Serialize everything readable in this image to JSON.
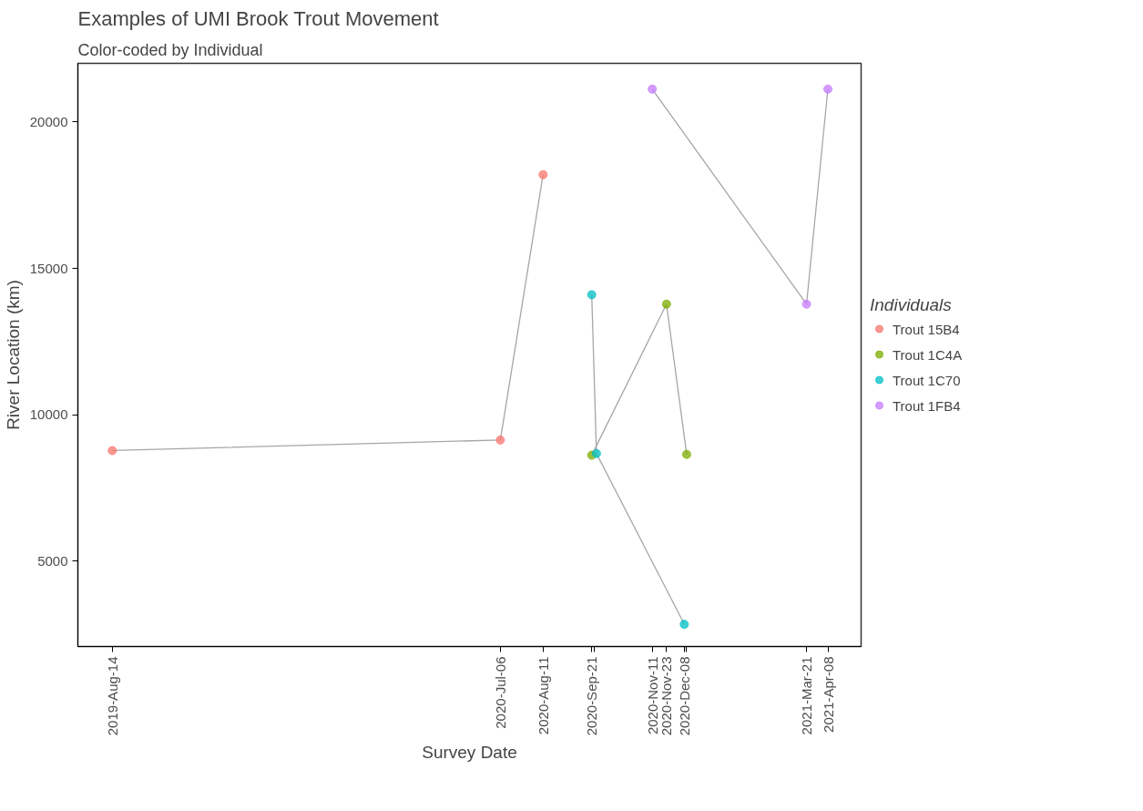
{
  "chart_data": {
    "type": "line",
    "title": "Examples of UMI Brook Trout Movement",
    "subtitle": "Color-coded by Individual",
    "xlabel": "Survey Date",
    "ylabel": "River Location (km)",
    "legend_title": "Individuals",
    "legend": "right",
    "marker": "circle",
    "grid": false,
    "xlim": [
      "2019-07-16",
      "2021-05-06"
    ],
    "ylim": [
      2090,
      22000
    ],
    "xticks": [
      {
        "value": "2019-08-14",
        "label": "2019-Aug-14"
      },
      {
        "value": "2020-07-06",
        "label": "2020-Jul-06"
      },
      {
        "value": "2020-08-11",
        "label": "2020-Aug-11"
      },
      {
        "value": "2020-09-21",
        "label": "2020-Sep-21"
      },
      {
        "value": "2020-09-23",
        "label": null
      },
      {
        "value": "2020-11-11",
        "label": "2020-Nov-11"
      },
      {
        "value": "2020-11-23",
        "label": "2020-Nov-23"
      },
      {
        "value": "2020-12-08",
        "label": "2020-Dec-08"
      },
      {
        "value": "2020-12-10",
        "label": null
      },
      {
        "value": "2021-03-21",
        "label": "2021-Mar-21"
      },
      {
        "value": "2021-04-08",
        "label": "2021-Apr-08"
      }
    ],
    "yticks": [
      5000,
      10000,
      15000,
      20000
    ],
    "series": [
      {
        "name": "Trout 15B4",
        "color": "#f8766d",
        "x": [
          "2019-08-14",
          "2020-07-06",
          "2020-08-11"
        ],
        "values": [
          8780,
          9140,
          18200
        ]
      },
      {
        "name": "Trout 1C4A",
        "color": "#7cae00",
        "x": [
          "2020-09-21",
          "2020-11-23",
          "2020-12-10"
        ],
        "values": [
          8620,
          13780,
          8650
        ]
      },
      {
        "name": "Trout 1C70",
        "color": "#00bfc4",
        "x": [
          "2020-09-21",
          "2020-09-25",
          "2020-12-08"
        ],
        "values": [
          14100,
          8680,
          2850
        ]
      },
      {
        "name": "Trout 1FB4",
        "color": "#c77cff",
        "x": [
          "2020-11-11",
          "2021-03-21",
          "2021-04-08"
        ],
        "values": [
          21120,
          13780,
          21120
        ]
      }
    ]
  }
}
